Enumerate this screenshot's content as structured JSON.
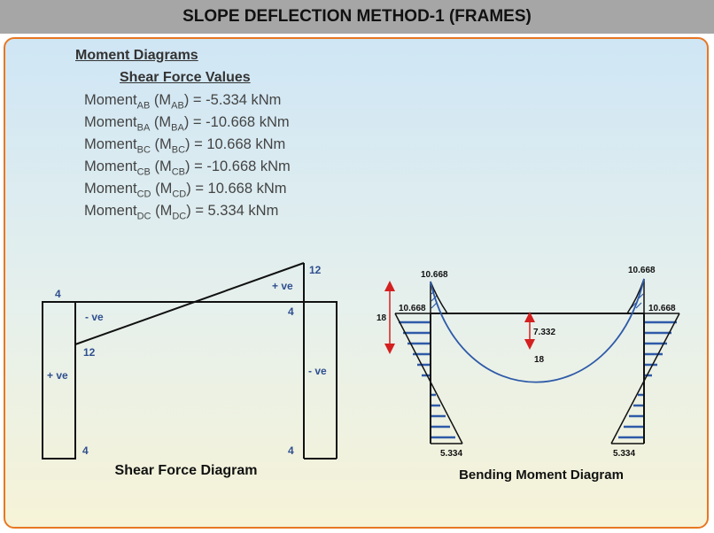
{
  "header": {
    "title": "SLOPE DEFLECTION METHOD-1 (FRAMES)"
  },
  "section": {
    "moment_heading": "Moment Diagrams",
    "shear_heading": "Shear Force Values"
  },
  "moments": [
    {
      "label": "Moment",
      "sub": "AB",
      "sym": "M",
      "sym_sub": "AB",
      "value": "= -5.334 kNm"
    },
    {
      "label": "Moment",
      "sub": "BA",
      "sym": "M",
      "sym_sub": "BA",
      "value": "= -10.668 kNm"
    },
    {
      "label": "Moment",
      "sub": "BC",
      "sym": "M",
      "sym_sub": "BC",
      "value": "= 10.668 kNm"
    },
    {
      "label": "Moment",
      "sub": "CB",
      "sym": "M",
      "sym_sub": "CB",
      "value": "= -10.668 kNm"
    },
    {
      "label": "Moment",
      "sub": "CD",
      "sym": "M",
      "sym_sub": "CD",
      "value": "= 10.668 kNm"
    },
    {
      "label": "Moment",
      "sub": "DC",
      "sym": "M",
      "sym_sub": "DC",
      "value": "= 5.334 kNm"
    }
  ],
  "sfd": {
    "caption": "Shear Force Diagram",
    "labels": {
      "left_top": "4",
      "left_mid": "- ve",
      "left_12": "12",
      "left_pve": "+ ve",
      "left_bottom": "4",
      "right_top": "12",
      "right_pve": "+ ve",
      "right_4": "4",
      "right_nve": "- ve",
      "right_bottom": "4"
    }
  },
  "bmd": {
    "caption": "Bending Moment Diagram",
    "labels": {
      "top_left": "10.668",
      "top_right": "10.668",
      "joint_left": "10.668",
      "joint_right": "10.668",
      "height": "18",
      "mid_value": "7.332",
      "mid_label": "18",
      "base_left": "5.334",
      "base_right": "5.334"
    }
  },
  "colors": {
    "header_bg": "#a6a6a6",
    "panel_border": "#e87722",
    "label_blue": "#2f4f8f",
    "hatch": "#2e5aa8",
    "dim_red": "#d42020"
  }
}
